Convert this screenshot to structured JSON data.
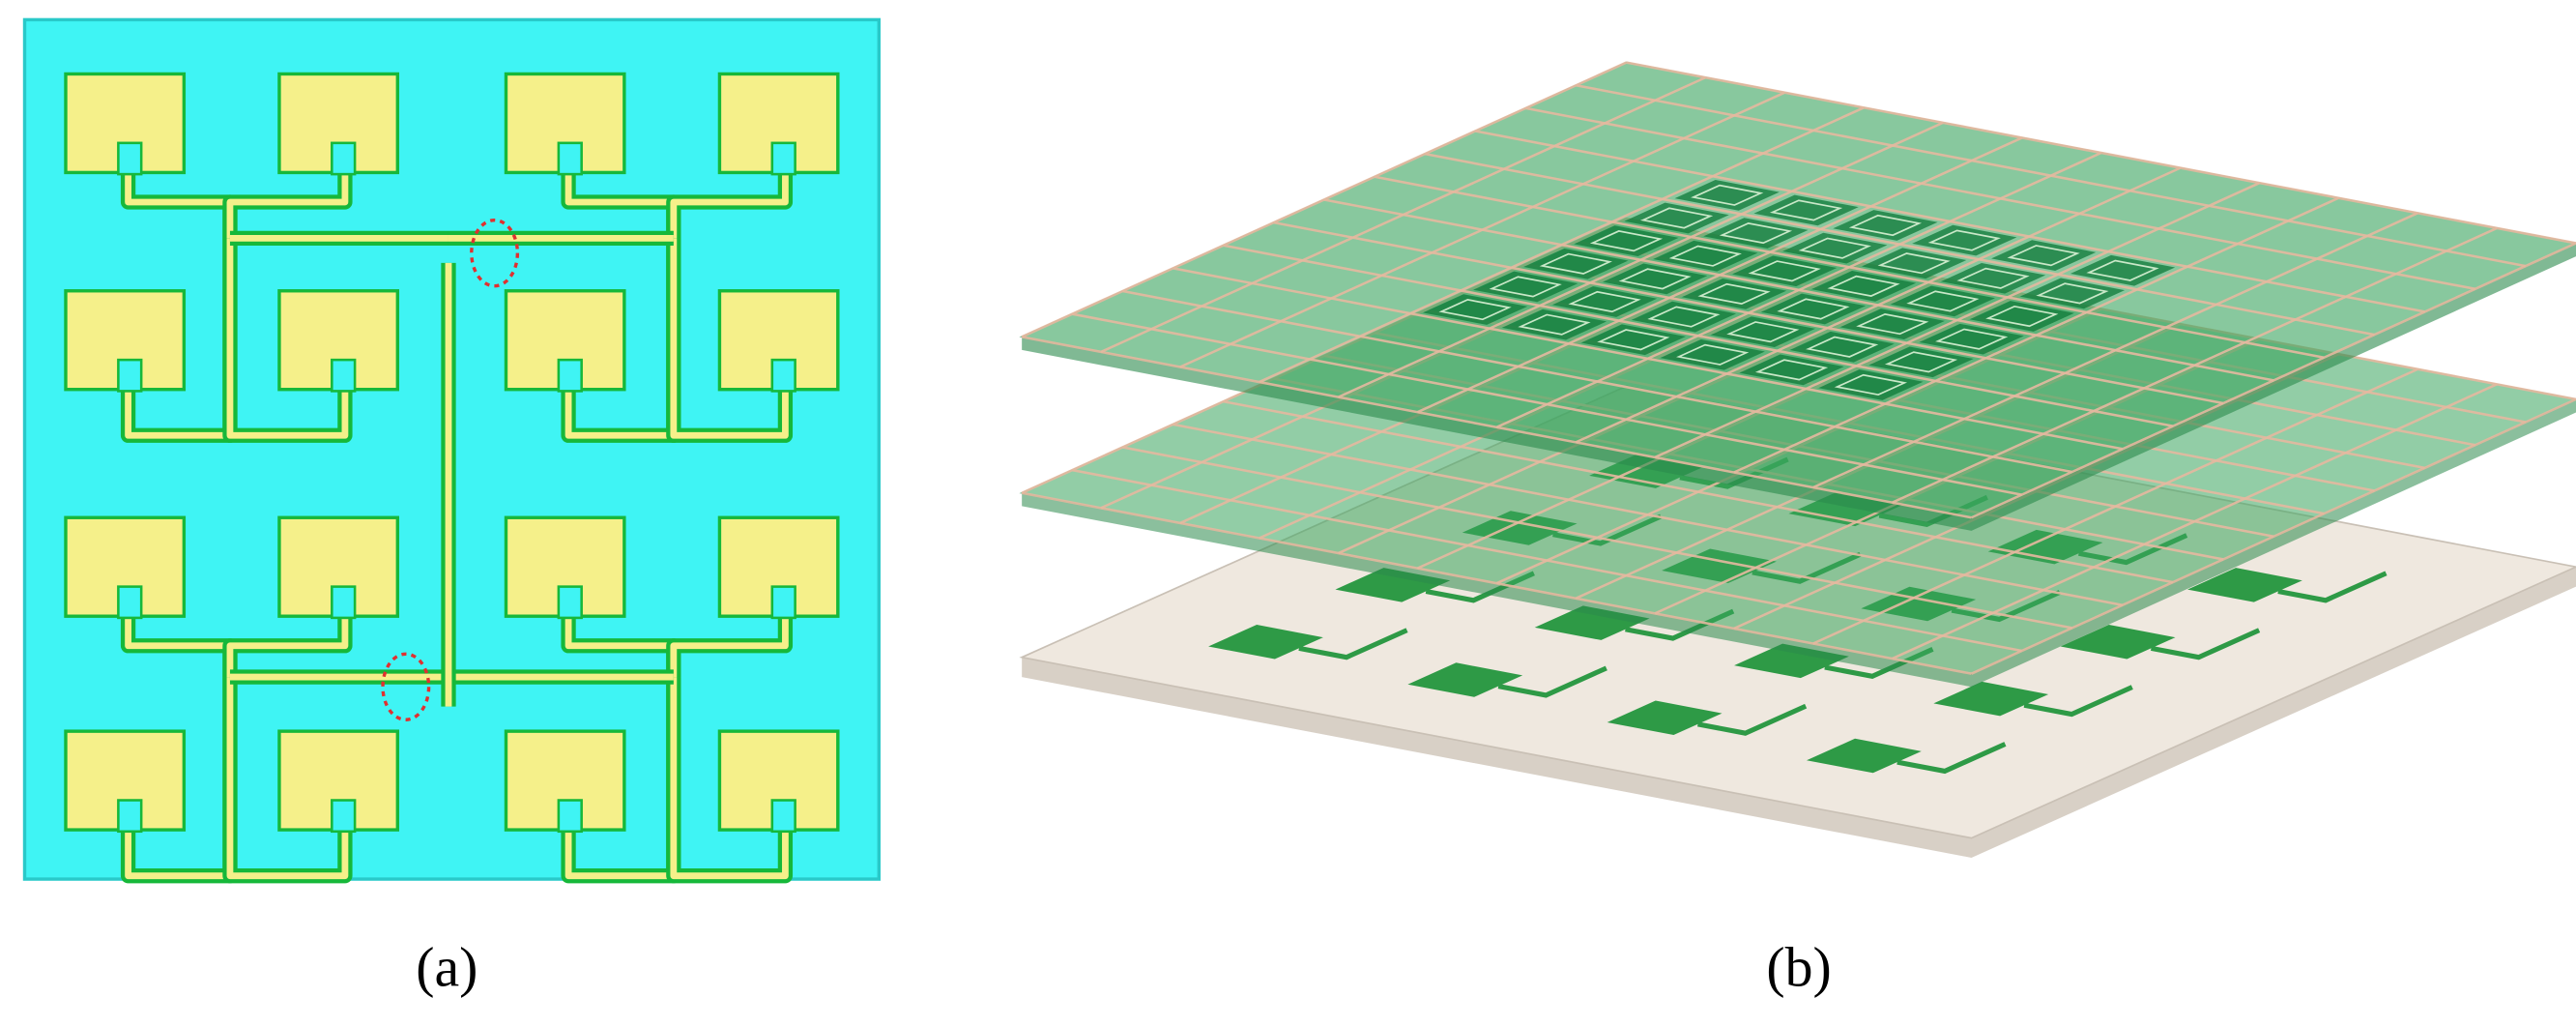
{
  "labels": {
    "a": "(a)",
    "b": "(b)"
  }
}
